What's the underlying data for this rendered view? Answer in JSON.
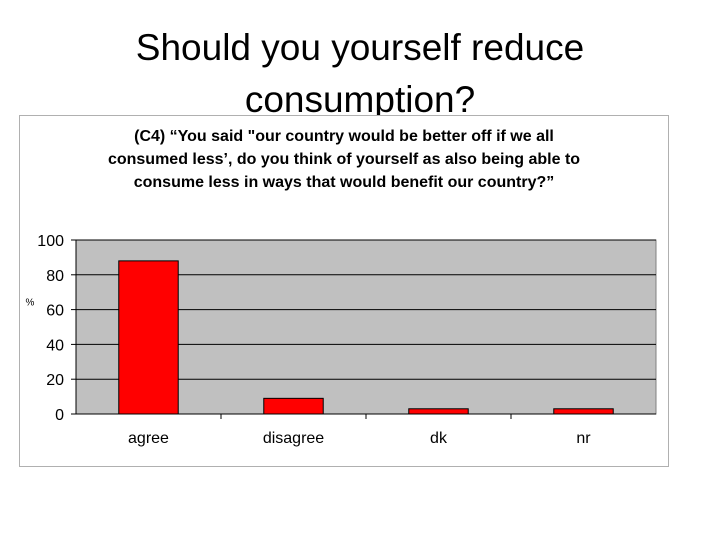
{
  "slide": {
    "title_line1": "Should you yourself reduce",
    "title_line2": "consumption?"
  },
  "chart_data": {
    "type": "bar",
    "title_lines": [
      "(C4)  “You said \"our country would be better off if we all",
      "consumed less’, do you think of yourself as also being able to",
      "consume less in ways that would benefit our country?”"
    ],
    "ylabel": "%",
    "xlabel": "",
    "ylim": [
      0,
      100
    ],
    "yticks": [
      0,
      20,
      40,
      60,
      80,
      100
    ],
    "categories": [
      "agree",
      "disagree",
      "dk",
      "nr"
    ],
    "values": [
      88,
      9,
      3,
      3
    ],
    "grid": true,
    "bar_color": "#ff0000",
    "plot_background": "#c0c0c0"
  }
}
